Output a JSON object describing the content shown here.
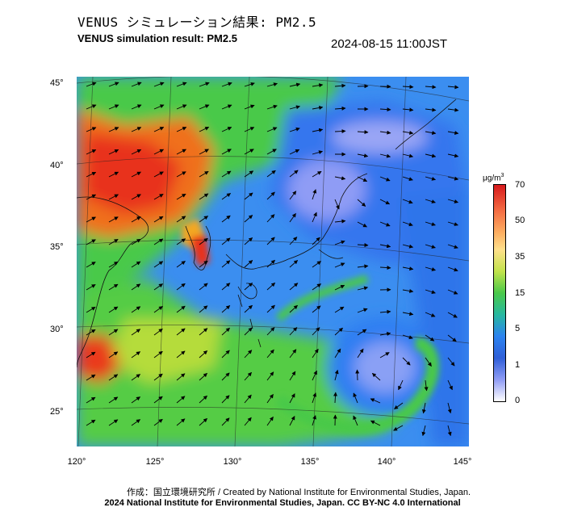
{
  "header": {
    "title_jp": "VENUS シミュレーション結果: PM2.5",
    "title_en": "VENUS simulation result: PM2.5",
    "timestamp": "2024-08-15 11:00JST"
  },
  "map": {
    "x_ticks": [
      "120°",
      "125°",
      "130°",
      "135°",
      "140°",
      "145°"
    ],
    "y_ticks": [
      "45°",
      "40°",
      "35°",
      "30°",
      "25°"
    ],
    "variable": "PM2.5",
    "field_colors": {
      "very_high": "#e8331d",
      "high": "#f5a21f",
      "mid": "#4ac94a",
      "low": "#2c83f0",
      "very_low": "#6b86f2",
      "clean": "#d9dcff"
    },
    "features": [
      "typhoon-vortex-south",
      "vortex-north",
      "wind-arrows",
      "coastlines",
      "lat-lon-grid"
    ]
  },
  "colorbar": {
    "unit": "μg/m",
    "unit_sup": "3",
    "ticks": [
      "70",
      "50",
      "35",
      "15",
      "5",
      "1",
      "0"
    ]
  },
  "credits": {
    "line1": "作成：国立環境研究所 / Created by National Institute for Environmental Studies, Japan.",
    "line2": "2024 National Institute for Environmental Studies, Japan. CC BY-NC 4.0 International"
  }
}
